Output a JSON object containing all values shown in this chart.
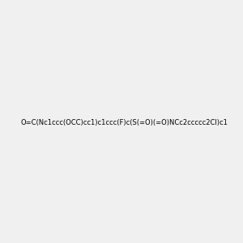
{
  "smiles": "O=C(Nc1ccc(OCC)cc1)c1ccc(F)c(S(=O)(=O)NCc2ccccc2Cl)c1",
  "img_size": [
    300,
    300
  ],
  "background_color": "#f0f0f0",
  "atom_colors": {
    "N": "#0000ff",
    "O": "#ff0000",
    "F": "#cc00cc",
    "Cl": "#aadd00",
    "S": "#dddd00"
  }
}
